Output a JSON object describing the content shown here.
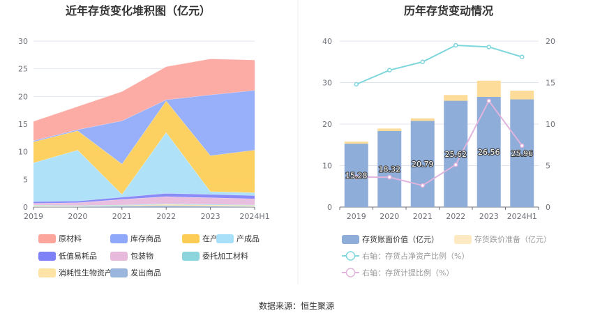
{
  "source_text": "数据来源：恒生聚源",
  "chart_data": [
    {
      "type": "area",
      "title": "近年存货变化堆积图（亿元）",
      "x": [
        "2019",
        "2020",
        "2021",
        "2022",
        "2023",
        "2024H1"
      ],
      "ylim": [
        0,
        30
      ],
      "yticks": [
        0,
        5,
        10,
        15,
        20,
        25,
        30
      ],
      "stacked": true,
      "grid": true,
      "legend_position": "bottom",
      "series": [
        {
          "name": "原材料",
          "color": "#fca59d",
          "values": [
            3.5,
            4.2,
            5.3,
            6.0,
            6.5,
            5.5
          ]
        },
        {
          "name": "库存商品",
          "color": "#8fa8f9",
          "values": [
            0.2,
            0.2,
            7.8,
            0.2,
            11.0,
            10.8
          ]
        },
        {
          "name": "在产品",
          "color": "#fdcc55",
          "values": [
            3.8,
            3.5,
            5.5,
            5.7,
            6.5,
            7.7
          ]
        },
        {
          "name": "产成品",
          "color": "#a8e0f9",
          "values": [
            7.0,
            9.2,
            0.5,
            11.0,
            0.5,
            0.5
          ]
        },
        {
          "name": "低值易耗品",
          "color": "#7f82f7",
          "values": [
            0.3,
            0.3,
            0.4,
            0.6,
            0.6,
            0.6
          ]
        },
        {
          "name": "包装物",
          "color": "#e7badc",
          "values": [
            0.3,
            0.5,
            1.0,
            1.3,
            1.2,
            1.1
          ]
        },
        {
          "name": "委托加工材料",
          "color": "#8dd5dc",
          "values": [
            0.1,
            0.1,
            0.1,
            0.1,
            0.1,
            0.1
          ]
        },
        {
          "name": "消耗性生物资产",
          "color": "#fde3a5",
          "values": [
            0.2,
            0.1,
            0.1,
            0.2,
            0.2,
            0.2
          ]
        },
        {
          "name": "发出商品",
          "color": "#9ab6dc",
          "values": [
            0.1,
            0.1,
            0.2,
            0.3,
            0.2,
            0.1
          ]
        }
      ]
    },
    {
      "type": "bar",
      "title": "历年存货变动情况",
      "categories": [
        "2019",
        "2020",
        "2021",
        "2022",
        "2023",
        "2024H1"
      ],
      "ylim": [
        0,
        40
      ],
      "yticks": [
        0,
        10,
        20,
        30,
        40
      ],
      "y2lim": [
        0,
        20
      ],
      "y2ticks": [
        0,
        5,
        10,
        15,
        20
      ],
      "legend_position": "bottom",
      "series": [
        {
          "name": "存货账面价值（亿元）",
          "color": "#8fadd9",
          "stack": "main",
          "axis": "left",
          "values": [
            15.28,
            18.32,
            20.79,
            25.62,
            26.56,
            25.96
          ],
          "labels": [
            "15.28",
            "18.32",
            "20.79",
            "25.62",
            "26.56",
            "25.96"
          ]
        },
        {
          "name": "存货跌价准备（亿元）",
          "color": "#fddc9a",
          "stack": "main",
          "axis": "left",
          "values": [
            0.5,
            0.6,
            0.6,
            1.4,
            3.9,
            2.1
          ]
        },
        {
          "name": "右轴：存货占净资产比例（%）",
          "color": "#7fd6dc",
          "type": "line",
          "axis": "right",
          "values": [
            14.8,
            16.5,
            17.5,
            19.5,
            19.3,
            18.1
          ]
        },
        {
          "name": "右轴：存货计提比例（%）",
          "color": "#e0b4dc",
          "type": "line",
          "axis": "right",
          "values": [
            3.6,
            3.6,
            2.6,
            5.1,
            12.8,
            7.4
          ]
        }
      ]
    }
  ]
}
